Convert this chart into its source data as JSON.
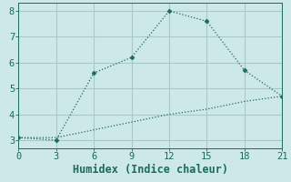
{
  "xlabel": "Humidex (Indice chaleur)",
  "bg_color": "#cce8e8",
  "grid_color": "#aac8c8",
  "line_color": "#1a6b5a",
  "line1_x": [
    0,
    3,
    6,
    9,
    12,
    15,
    18,
    21
  ],
  "line1_y": [
    3.1,
    3.0,
    5.6,
    6.2,
    8.0,
    7.6,
    5.7,
    4.7
  ],
  "line2_x": [
    0,
    3,
    6,
    9,
    12,
    15,
    18,
    21
  ],
  "line2_y": [
    3.1,
    3.1,
    3.4,
    3.7,
    4.0,
    4.2,
    4.5,
    4.7
  ],
  "xlim": [
    0,
    21
  ],
  "ylim": [
    2.7,
    8.3
  ],
  "xticks": [
    0,
    3,
    6,
    9,
    12,
    15,
    18,
    21
  ],
  "yticks": [
    3,
    4,
    5,
    6,
    7,
    8
  ],
  "tick_fontsize": 7.5,
  "xlabel_fontsize": 8.5
}
